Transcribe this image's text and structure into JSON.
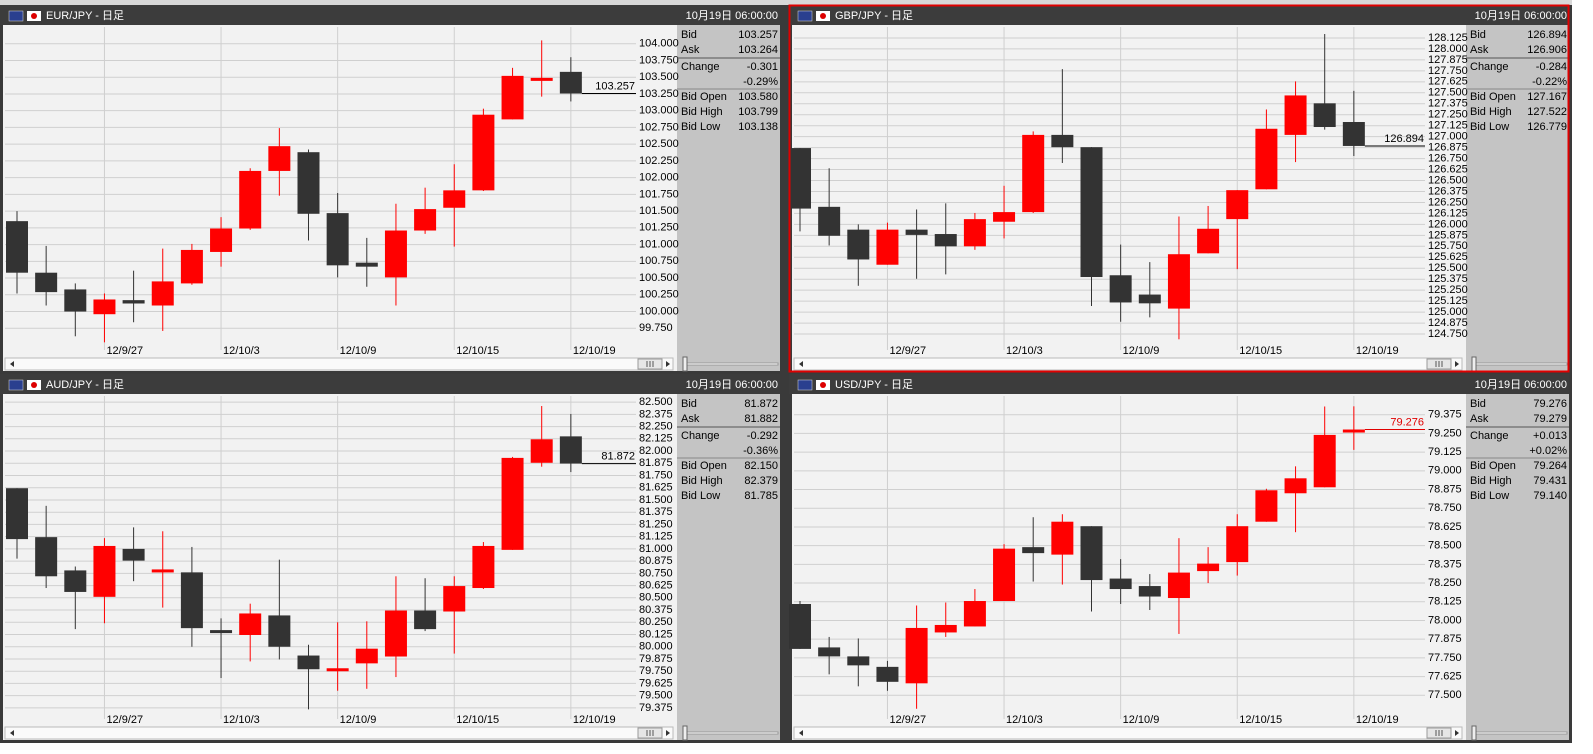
{
  "panels": [
    {
      "title": "EUR/JPY - 日足",
      "datetime": "10月19日 06:00:00",
      "selected": false,
      "last_color": "#000000",
      "info": [
        {
          "label": "Bid",
          "value": "103.257"
        },
        {
          "label": "Ask",
          "value": "103.264"
        },
        {
          "label": "Change",
          "value": "-0.301"
        },
        {
          "value": "-0.29%"
        },
        {
          "label": "Bid Open",
          "value": "103.580"
        },
        {
          "label": "Bid High",
          "value": "103.799"
        },
        {
          "label": "Bid Low",
          "value": "103.138"
        }
      ],
      "chart": {
        "type": "candlestick",
        "up_color": "#ff0000",
        "down_color": "#333333",
        "grid": true,
        "categories": [
          null,
          null,
          null,
          "12/9/27",
          null,
          null,
          null,
          "12/10/3",
          null,
          null,
          null,
          "12/10/9",
          null,
          null,
          null,
          "12/10/15",
          null,
          null,
          null,
          "12/10/19"
        ],
        "open": [
          101.35,
          100.58,
          100.33,
          99.96,
          100.17,
          100.09,
          100.42,
          100.89,
          101.24,
          102.1,
          102.38,
          101.47,
          100.73,
          100.51,
          101.21,
          101.55,
          101.81,
          102.87,
          103.47,
          103.58
        ],
        "high": [
          101.5,
          100.98,
          100.42,
          100.27,
          100.61,
          100.94,
          101.01,
          101.41,
          102.14,
          102.74,
          102.42,
          101.77,
          101.1,
          101.61,
          101.85,
          102.2,
          103.03,
          103.64,
          104.05,
          103.799
        ],
        "low": [
          100.27,
          100.09,
          99.63,
          99.54,
          99.84,
          99.71,
          100.4,
          100.67,
          101.22,
          101.73,
          101.06,
          100.51,
          100.37,
          100.09,
          101.16,
          100.97,
          101.8,
          102.87,
          103.21,
          103.138
        ],
        "close": [
          100.58,
          100.29,
          100.0,
          100.18,
          100.12,
          100.45,
          100.92,
          101.24,
          102.1,
          102.47,
          101.46,
          100.69,
          100.67,
          101.21,
          101.53,
          101.81,
          102.94,
          103.52,
          103.49,
          103.257
        ],
        "ylim": [
          99.5,
          104.25
        ],
        "yticks": [
          {
            "value": 99.75,
            "label": "99.750"
          },
          {
            "value": 100,
            "label": "100.000"
          },
          {
            "value": 100.25,
            "label": "100.250"
          },
          {
            "value": 100.5,
            "label": "100.500"
          },
          {
            "value": 100.75,
            "label": "100.750"
          },
          {
            "value": 101,
            "label": "101.000"
          },
          {
            "value": 101.25,
            "label": "101.250"
          },
          {
            "value": 101.5,
            "label": "101.500"
          },
          {
            "value": 101.75,
            "label": "101.750"
          },
          {
            "value": 102,
            "label": "102.000"
          },
          {
            "value": 102.25,
            "label": "102.250"
          },
          {
            "value": 102.5,
            "label": "102.500"
          },
          {
            "value": 102.75,
            "label": "102.750"
          },
          {
            "value": 103,
            "label": "103.000"
          },
          {
            "value": 103.25,
            "label": "103.250"
          },
          {
            "value": 103.5,
            "label": "103.500"
          },
          {
            "value": 103.75,
            "label": "103.750"
          },
          {
            "value": 104,
            "label": "104.000"
          }
        ]
      }
    },
    {
      "title": "GBP/JPY - 日足",
      "datetime": "10月19日 06:00:00",
      "selected": true,
      "last_color": "#000000",
      "info": [
        {
          "label": "Bid",
          "value": "126.894"
        },
        {
          "label": "Ask",
          "value": "126.906"
        },
        {
          "label": "Change",
          "value": "-0.284"
        },
        {
          "value": "-0.22%"
        },
        {
          "label": "Bid Open",
          "value": "127.167"
        },
        {
          "label": "Bid High",
          "value": "127.522"
        },
        {
          "label": "Bid Low",
          "value": "126.779"
        }
      ],
      "chart": {
        "type": "candlestick",
        "up_color": "#ff0000",
        "down_color": "#333333",
        "grid": true,
        "categories": [
          null,
          null,
          null,
          "12/9/27",
          null,
          null,
          null,
          "12/10/3",
          null,
          null,
          null,
          "12/10/9",
          null,
          null,
          null,
          "12/10/15",
          null,
          null,
          null,
          "12/10/19"
        ],
        "open": [
          126.87,
          126.2,
          125.94,
          125.54,
          125.94,
          125.89,
          125.75,
          126.03,
          126.14,
          127.02,
          126.88,
          125.42,
          125.2,
          125.04,
          125.67,
          126.06,
          126.4,
          127.02,
          127.38,
          127.167
        ],
        "high": [
          126.87,
          126.64,
          126.0,
          126.02,
          126.17,
          126.24,
          126.13,
          126.44,
          127.06,
          127.77,
          126.88,
          125.77,
          125.57,
          126.09,
          126.21,
          126.39,
          127.31,
          127.63,
          128.17,
          127.522
        ],
        "low": [
          125.92,
          125.76,
          125.3,
          125.54,
          125.38,
          125.43,
          125.71,
          125.84,
          126.13,
          126.7,
          125.07,
          124.89,
          124.94,
          124.69,
          125.67,
          125.49,
          126.4,
          126.71,
          127.08,
          126.779
        ],
        "close": [
          126.18,
          125.87,
          125.6,
          125.94,
          125.88,
          125.75,
          126.06,
          126.14,
          127.02,
          126.88,
          125.4,
          125.11,
          125.1,
          125.66,
          125.95,
          126.39,
          127.09,
          127.47,
          127.11,
          126.894
        ],
        "ylim": [
          124.625,
          128.25
        ],
        "yticks": [
          {
            "value": 124.75,
            "label": "124.750"
          },
          124.875,
          {
            "value": 125,
            "label": "125.000"
          },
          125.125,
          {
            "value": 125.25,
            "label": "125.250"
          },
          125.375,
          {
            "value": 125.5,
            "label": "125.500"
          },
          125.625,
          {
            "value": 125.75,
            "label": "125.750"
          },
          125.875,
          {
            "value": 126,
            "label": "126.000"
          },
          126.125,
          {
            "value": 126.25,
            "label": "126.250"
          },
          126.375,
          {
            "value": 126.5,
            "label": "126.500"
          },
          126.625,
          {
            "value": 126.75,
            "label": "126.750"
          },
          126.875,
          {
            "value": 127,
            "label": "127.000"
          },
          127.125,
          {
            "value": 127.25,
            "label": "127.250"
          },
          127.375,
          {
            "value": 127.5,
            "label": "127.500"
          },
          127.625,
          {
            "value": 127.75,
            "label": "127.750"
          },
          127.875,
          {
            "value": 128,
            "label": "128.000"
          },
          128.125
        ]
      }
    },
    {
      "title": "AUD/JPY - 日足",
      "datetime": "10月19日 06:00:00",
      "selected": false,
      "last_color": "#000000",
      "info": [
        {
          "label": "Bid",
          "value": "81.872"
        },
        {
          "label": "Ask",
          "value": "81.882"
        },
        {
          "label": "Change",
          "value": "-0.292"
        },
        {
          "value": "-0.36%"
        },
        {
          "label": "Bid Open",
          "value": "82.150"
        },
        {
          "label": "Bid High",
          "value": "82.379"
        },
        {
          "label": "Bid Low",
          "value": "81.785"
        }
      ],
      "chart": {
        "type": "candlestick",
        "up_color": "#ff0000",
        "down_color": "#333333",
        "grid": true,
        "categories": [
          null,
          null,
          null,
          "12/9/27",
          null,
          null,
          null,
          "12/10/3",
          null,
          null,
          null,
          "12/10/9",
          null,
          null,
          null,
          "12/10/15",
          null,
          null,
          null,
          "12/10/19"
        ],
        "open": [
          81.62,
          81.12,
          80.78,
          80.51,
          81.0,
          80.77,
          80.76,
          80.17,
          80.12,
          80.32,
          79.91,
          79.76,
          79.83,
          79.9,
          80.37,
          80.36,
          80.6,
          80.99,
          81.88,
          82.15
        ],
        "high": [
          81.62,
          81.44,
          80.82,
          81.11,
          81.22,
          81.18,
          81.02,
          80.29,
          80.44,
          80.89,
          80.02,
          80.25,
          80.26,
          80.72,
          80.7,
          80.72,
          81.07,
          81.94,
          82.46,
          82.379
        ],
        "low": [
          80.9,
          80.6,
          80.18,
          80.24,
          80.67,
          80.4,
          80.0,
          79.68,
          79.85,
          79.87,
          79.36,
          79.55,
          79.57,
          79.69,
          80.16,
          79.93,
          80.59,
          80.99,
          81.84,
          81.785
        ],
        "close": [
          81.1,
          80.72,
          80.56,
          81.03,
          80.88,
          80.79,
          80.19,
          80.14,
          80.34,
          80.0,
          79.77,
          79.78,
          79.98,
          80.37,
          80.18,
          80.62,
          81.03,
          81.93,
          82.12,
          81.872
        ],
        "ylim": [
          79.3125,
          82.5625
        ],
        "yticks": [
          79.375,
          {
            "value": 79.5,
            "label": "79.500"
          },
          79.625,
          {
            "value": 79.75,
            "label": "79.750"
          },
          79.875,
          {
            "value": 80,
            "label": "80.000"
          },
          80.125,
          {
            "value": 80.25,
            "label": "80.250"
          },
          80.375,
          {
            "value": 80.5,
            "label": "80.500"
          },
          80.625,
          {
            "value": 80.75,
            "label": "80.750"
          },
          80.875,
          {
            "value": 81,
            "label": "81.000"
          },
          81.125,
          {
            "value": 81.25,
            "label": "81.250"
          },
          81.375,
          {
            "value": 81.5,
            "label": "81.500"
          },
          81.625,
          {
            "value": 81.75,
            "label": "81.750"
          },
          81.875,
          {
            "value": 82,
            "label": "82.000"
          },
          82.125,
          {
            "value": 82.25,
            "label": "82.250"
          },
          82.375,
          {
            "value": 82.5,
            "label": "82.500"
          }
        ]
      }
    },
    {
      "title": "USD/JPY - 日足",
      "datetime": "10月19日 06:00:00",
      "selected": false,
      "last_color": "#e00000",
      "info": [
        {
          "label": "Bid",
          "value": "79.276"
        },
        {
          "label": "Ask",
          "value": "79.279"
        },
        {
          "label": "Change",
          "value": "+0.013"
        },
        {
          "value": "+0.02%"
        },
        {
          "label": "Bid Open",
          "value": "79.264"
        },
        {
          "label": "Bid High",
          "value": "79.431"
        },
        {
          "label": "Bid Low",
          "value": "79.140"
        }
      ],
      "chart": {
        "type": "candlestick",
        "up_color": "#ff0000",
        "down_color": "#333333",
        "grid": true,
        "categories": [
          null,
          null,
          null,
          "12/9/27",
          null,
          null,
          null,
          "12/10/3",
          null,
          null,
          null,
          "12/10/9",
          null,
          null,
          null,
          "12/10/15",
          null,
          null,
          null,
          "12/10/19"
        ],
        "open": [
          78.11,
          77.82,
          77.76,
          77.69,
          77.58,
          77.92,
          77.96,
          78.13,
          78.49,
          78.44,
          78.63,
          78.28,
          78.23,
          78.15,
          78.33,
          78.39,
          78.66,
          78.85,
          78.89,
          79.264
        ],
        "high": [
          78.13,
          77.89,
          77.88,
          77.73,
          78.1,
          78.12,
          78.21,
          78.51,
          78.69,
          78.71,
          78.63,
          78.41,
          78.31,
          78.55,
          78.49,
          78.71,
          78.88,
          79.03,
          79.43,
          79.431
        ],
        "low": [
          77.81,
          77.64,
          77.56,
          77.53,
          77.41,
          77.89,
          77.96,
          78.13,
          78.26,
          78.24,
          78.06,
          78.11,
          78.07,
          77.91,
          78.25,
          78.3,
          78.66,
          78.59,
          78.89,
          79.14
        ],
        "close": [
          77.81,
          77.76,
          77.7,
          77.59,
          77.95,
          77.97,
          78.13,
          78.48,
          78.45,
          78.66,
          78.27,
          78.21,
          78.16,
          78.32,
          78.38,
          78.63,
          78.87,
          78.95,
          79.24,
          79.276
        ],
        "ylim": [
          77.375,
          79.5
        ],
        "yticks": [
          {
            "value": 77.5,
            "label": "77.500"
          },
          77.625,
          {
            "value": 77.75,
            "label": "77.750"
          },
          77.875,
          {
            "value": 78,
            "label": "78.000"
          },
          78.125,
          {
            "value": 78.25,
            "label": "78.250"
          },
          78.375,
          {
            "value": 78.5,
            "label": "78.500"
          },
          78.625,
          {
            "value": 78.75,
            "label": "78.750"
          },
          78.875,
          {
            "value": 79,
            "label": "79.000"
          },
          79.125,
          {
            "value": 79.25,
            "label": "79.250"
          },
          79.375
        ]
      }
    }
  ]
}
